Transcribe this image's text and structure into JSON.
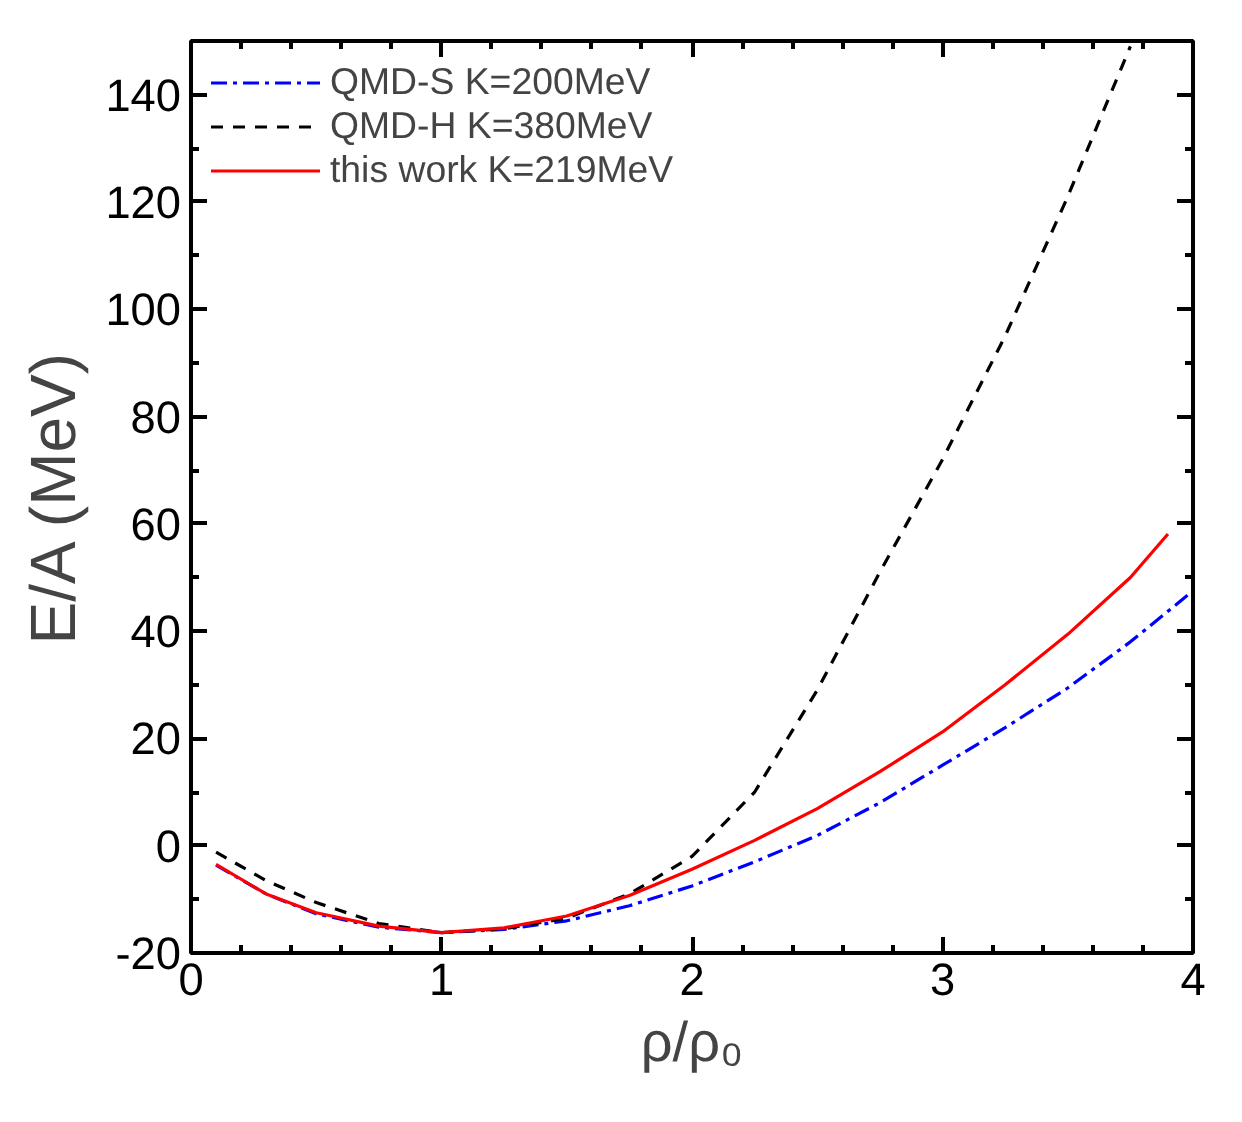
{
  "chart_data": {
    "type": "line",
    "xlabel": "ρ/ρ₀",
    "ylabel": "E/A (MeV)",
    "xlim": [
      0,
      4
    ],
    "ylim": [
      -20,
      150
    ],
    "xticks": [
      0,
      1,
      2,
      3,
      4
    ],
    "yticks": [
      -20,
      0,
      20,
      40,
      60,
      80,
      100,
      120,
      140
    ],
    "grid": false,
    "legend": "top left",
    "marker": "none",
    "series": [
      {
        "name": "QMD-S K=200MeV",
        "color": "#0000ff",
        "line_style": "dashdot",
        "x": [
          0.1,
          0.3,
          0.5,
          0.75,
          1,
          1.25,
          1.5,
          1.75,
          2,
          2.25,
          2.5,
          2.75,
          3,
          3.25,
          3.5,
          3.75,
          4
        ],
        "values": [
          -3.6,
          -9,
          -12.7,
          -15.2,
          -16.2,
          -15.6,
          -14,
          -11.2,
          -7.5,
          -3,
          1.9,
          8,
          15,
          22,
          29.4,
          38,
          47.5
        ]
      },
      {
        "name": "QMD-H K=380MeV",
        "color": "#000000",
        "line_style": "dashed",
        "x": [
          0.1,
          0.3,
          0.5,
          0.75,
          1,
          1.25,
          1.5,
          1.75,
          2,
          2.25,
          2.5,
          2.75,
          3,
          3.25,
          3.5,
          3.75
        ],
        "values": [
          -1.2,
          -6.5,
          -10.6,
          -14.5,
          -16.2,
          -15.5,
          -13.5,
          -9,
          -2,
          10,
          29,
          51,
          72,
          95,
          121,
          149
        ]
      },
      {
        "name": "this work K=219MeV",
        "color": "#ff0000",
        "line_style": "solid",
        "x": [
          0.1,
          0.3,
          0.5,
          0.75,
          1,
          1.25,
          1.5,
          1.75,
          2,
          2.25,
          2.5,
          2.75,
          3,
          3.25,
          3.5,
          3.75,
          3.9
        ],
        "values": [
          -3.5,
          -9,
          -12.5,
          -15,
          -16.2,
          -15.3,
          -13.1,
          -9.3,
          -4.4,
          1,
          6.9,
          13.8,
          21.2,
          30,
          39.4,
          50,
          58.1
        ]
      }
    ]
  }
}
